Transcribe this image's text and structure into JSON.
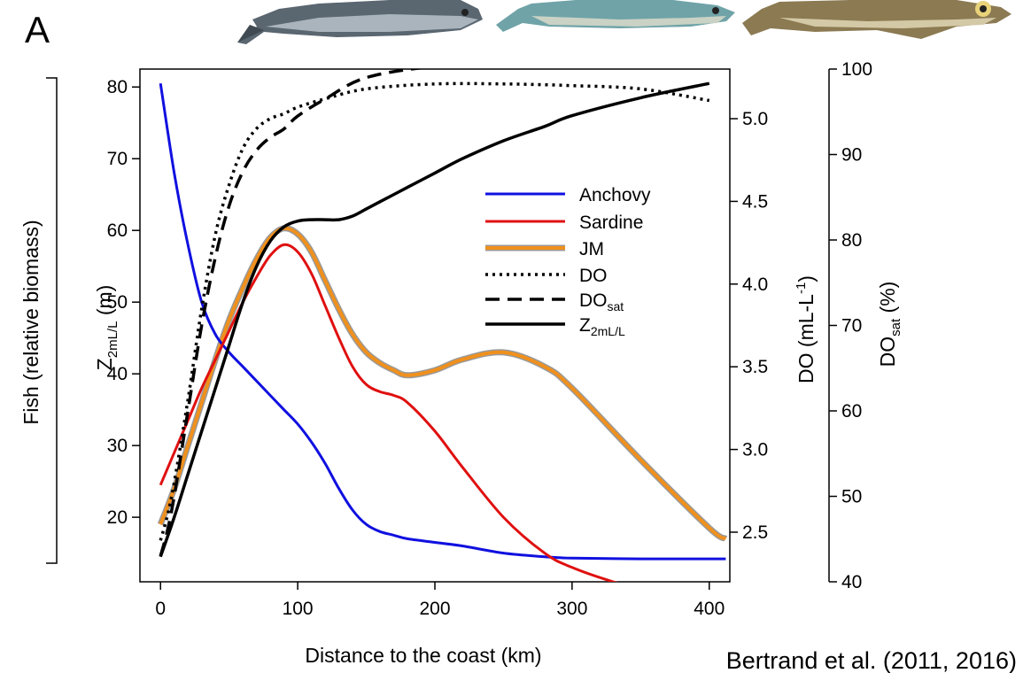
{
  "panel_label": "A",
  "citation": "Bertrand et al. (2011, 2016)",
  "fish_illustrations": [
    "anchovy-fish-picture",
    "sardine-fish-picture",
    "jack-mackerel-fish-picture"
  ],
  "colors": {
    "anchovy": "#1010e0",
    "sardine": "#e01010",
    "jm": "#f0901c",
    "jm_edge": "#9a9a9a",
    "black": "#000000"
  },
  "chart_data": {
    "type": "line",
    "xlabel": "Distance to the coast (km)",
    "ylabel_outer": "Fish (relative biomass)",
    "ylabel_left": {
      "main": "Z",
      "sub": "2mL/L",
      "unit": " (m)"
    },
    "ylabel_right1": {
      "main": "DO (mL-L",
      "sup": "-1",
      "end": ")"
    },
    "ylabel_right2": {
      "main": "DO",
      "sub": "sat",
      "unit": " (%)"
    },
    "xlim": [
      -15,
      415
    ],
    "x_ticks": [
      0,
      100,
      200,
      300,
      400
    ],
    "ylim_left": [
      11,
      82.5
    ],
    "y_left_ticks": [
      20,
      30,
      40,
      50,
      60,
      70,
      80
    ],
    "ylim_right1": [
      2.2,
      5.3
    ],
    "y_right1_ticks": [
      2.5,
      3.0,
      3.5,
      4.0,
      4.5,
      5.0
    ],
    "y_right1_tick_labels": [
      "2.5",
      "3.0",
      "3.5",
      "4.0",
      "4.5",
      "5.0"
    ],
    "ylim_right2": [
      40,
      100
    ],
    "y_right2_ticks": [
      40,
      50,
      60,
      70,
      80,
      90,
      100
    ],
    "legend_placement": "center-right",
    "legend": [
      {
        "label": "Anchovy",
        "style": "blue-solid"
      },
      {
        "label": "Sardine",
        "style": "red-solid"
      },
      {
        "label": "JM",
        "style": "orange-solid"
      },
      {
        "label": "DO",
        "style": "black-dotted"
      },
      {
        "label": "DO",
        "sub": "sat",
        "style": "black-dashed"
      },
      {
        "label": "Z",
        "sub": "2mL/L",
        "style": "black-solid"
      }
    ],
    "series": [
      {
        "name": "Anchovy",
        "axis": "left",
        "x": [
          0,
          10,
          20,
          30,
          40,
          50,
          60,
          70,
          80,
          90,
          100,
          110,
          120,
          130,
          140,
          150,
          160,
          170,
          180,
          200,
          220,
          250,
          280,
          300,
          350,
          400,
          412
        ],
        "y": [
          80.5,
          68,
          58,
          50,
          45.5,
          43,
          41,
          39,
          37,
          35,
          33,
          30.5,
          27.5,
          24,
          21,
          19,
          18,
          17.5,
          17,
          16.5,
          16,
          15,
          14.5,
          14.3,
          14.2,
          14.2,
          14.2
        ]
      },
      {
        "name": "Sardine",
        "axis": "left",
        "x": [
          0,
          10,
          20,
          30,
          40,
          50,
          60,
          70,
          80,
          90,
          100,
          110,
          120,
          130,
          140,
          150,
          160,
          170,
          180,
          200,
          220,
          250,
          280,
          300,
          330,
          360,
          380
        ],
        "y": [
          24.5,
          29,
          33.5,
          38,
          42,
          46,
          50,
          53.5,
          56.5,
          58,
          57,
          54,
          49.5,
          45,
          41,
          38.5,
          37.5,
          37,
          36,
          32,
          27,
          20,
          15,
          13,
          11,
          9.5,
          8.5
        ]
      },
      {
        "name": "JM",
        "axis": "left",
        "x": [
          0,
          10,
          20,
          30,
          40,
          50,
          60,
          70,
          80,
          90,
          100,
          110,
          120,
          130,
          140,
          150,
          160,
          170,
          180,
          200,
          220,
          250,
          280,
          300,
          350,
          400,
          412
        ],
        "y": [
          19,
          24,
          30,
          36,
          42,
          47.5,
          52,
          56,
          59,
          60.3,
          59.5,
          57,
          53,
          49,
          45.5,
          43,
          41.5,
          40.5,
          39.8,
          40.5,
          42,
          43,
          41,
          38,
          28,
          18.5,
          17
        ]
      },
      {
        "name": "DO",
        "axis": "right1",
        "x": [
          0,
          5,
          10,
          20,
          30,
          40,
          50,
          60,
          70,
          80,
          90,
          100,
          120,
          150,
          200,
          250,
          300,
          350,
          400
        ],
        "y": [
          2.45,
          2.6,
          2.8,
          3.3,
          3.85,
          4.3,
          4.6,
          4.82,
          4.94,
          5.0,
          5.03,
          5.07,
          5.12,
          5.18,
          5.21,
          5.21,
          5.2,
          5.18,
          5.11
        ]
      },
      {
        "name": "DO_sat",
        "axis": "right2",
        "x": [
          0,
          5,
          10,
          20,
          30,
          40,
          50,
          60,
          70,
          80,
          90,
          100,
          120,
          150,
          200,
          250,
          300,
          350,
          400
        ],
        "y": [
          43,
          46,
          50,
          60,
          70,
          78,
          84,
          88,
          90.5,
          92,
          93,
          94.5,
          96.5,
          99,
          100.3,
          100.5,
          100.6,
          100.5,
          100.5
        ]
      },
      {
        "name": "Z2mL/L",
        "axis": "left",
        "x": [
          0,
          10,
          20,
          30,
          40,
          50,
          60,
          70,
          80,
          90,
          100,
          110,
          120,
          130,
          140,
          150,
          160,
          180,
          200,
          220,
          250,
          280,
          300,
          350,
          400
        ],
        "y": [
          14.5,
          20,
          26,
          32,
          38,
          44,
          50,
          55,
          58.5,
          60.5,
          61.3,
          61.5,
          61.5,
          61.5,
          62,
          63,
          64,
          66,
          68,
          70,
          72.5,
          74.5,
          76,
          78.5,
          80.5
        ]
      }
    ]
  }
}
